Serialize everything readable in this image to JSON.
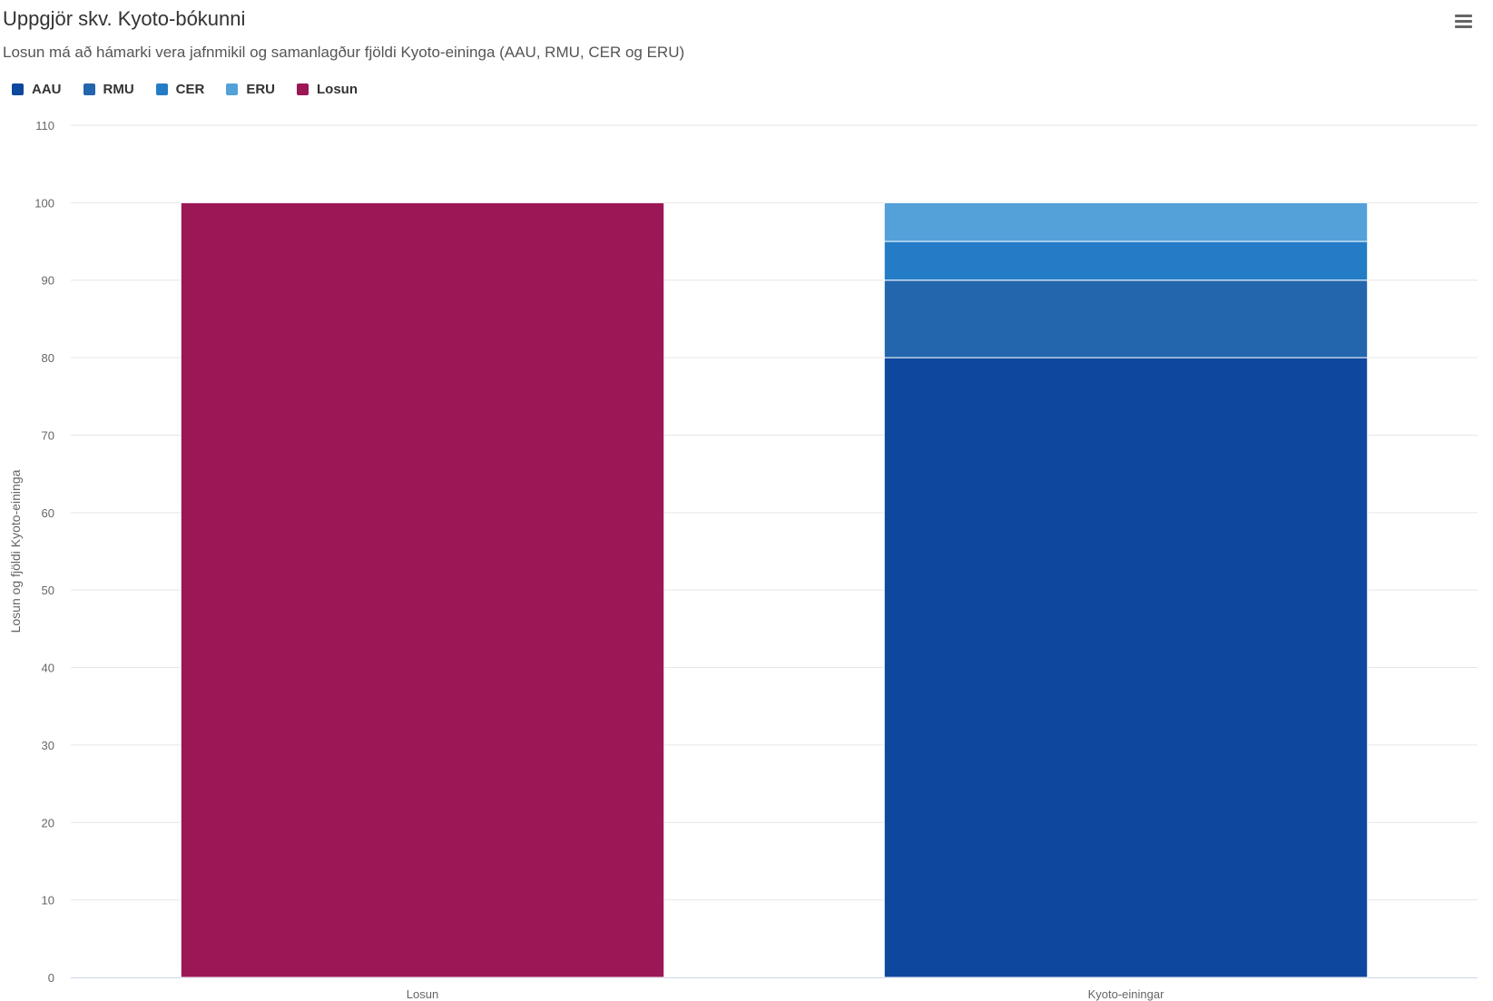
{
  "chart_data": {
    "type": "bar",
    "stacked": true,
    "title": "Uppgjör skv. Kyoto-bókunni",
    "subtitle": "Losun má að hámarki vera jafnmikil og samanlagður fjöldi Kyoto-eininga (AAU, RMU, CER og ERU)",
    "xlabel": "",
    "ylabel": "Losun og fjöldi Kyoto-eininga",
    "ylim": [
      0,
      110
    ],
    "yticks": [
      0,
      10,
      20,
      30,
      40,
      50,
      60,
      70,
      80,
      90,
      100,
      110
    ],
    "categories": [
      "Losun",
      "Kyoto-einingar"
    ],
    "series": [
      {
        "name": "AAU",
        "color": "#0e479e",
        "values": [
          0,
          80
        ]
      },
      {
        "name": "RMU",
        "color": "#2366ad",
        "values": [
          0,
          10
        ]
      },
      {
        "name": "CER",
        "color": "#247cc7",
        "values": [
          0,
          5
        ]
      },
      {
        "name": "ERU",
        "color": "#54a0d9",
        "values": [
          0,
          5
        ]
      },
      {
        "name": "Losun",
        "color": "#9b1756",
        "values": [
          100,
          0
        ]
      }
    ],
    "grid": true,
    "legend_position": "top-left"
  },
  "menu": {
    "icon": "hamburger-menu-icon"
  }
}
